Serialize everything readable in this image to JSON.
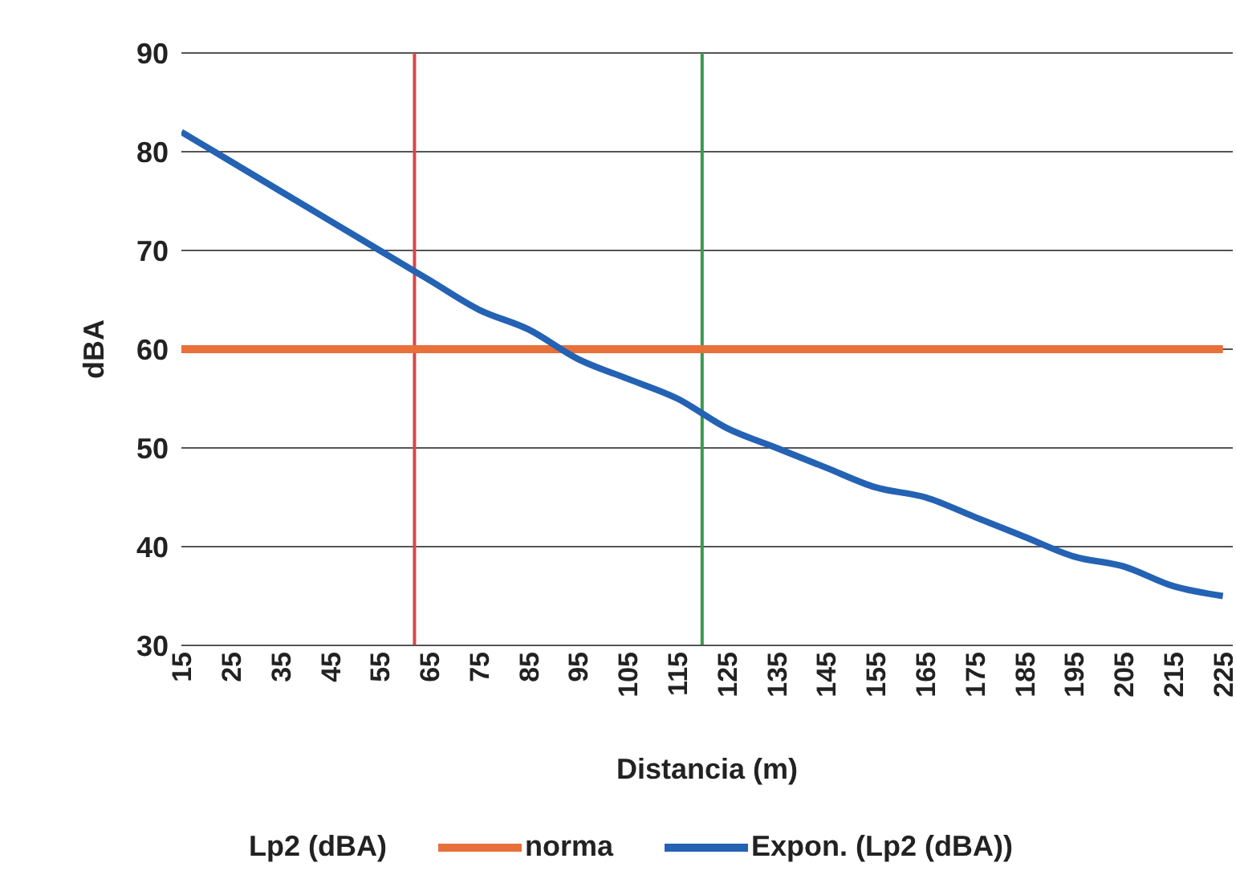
{
  "chart_data": {
    "type": "line",
    "xlabel": "Distancia (m)",
    "ylabel": "dBA",
    "x": [
      15,
      25,
      35,
      45,
      55,
      65,
      75,
      85,
      95,
      105,
      115,
      125,
      135,
      145,
      155,
      165,
      175,
      185,
      195,
      205,
      215,
      225
    ],
    "series": [
      {
        "name": "Lp2 (dBA)",
        "values": [
          null,
          null,
          null,
          null,
          null,
          null,
          null,
          null,
          null,
          null,
          null,
          null,
          null,
          null,
          null,
          null,
          null,
          null,
          null,
          null,
          null,
          null
        ]
      },
      {
        "name": "norma",
        "color": "#e8703a",
        "values": [
          60,
          60,
          60,
          60,
          60,
          60,
          60,
          60,
          60,
          60,
          60,
          60,
          60,
          60,
          60,
          60,
          60,
          60,
          60,
          60,
          60,
          60
        ]
      },
      {
        "name": "Expon. (Lp2 (dBA))",
        "color": "#2462b4",
        "values": [
          82,
          79,
          76,
          73,
          70,
          67,
          64,
          62,
          59,
          57,
          55,
          52,
          50,
          48,
          46,
          45,
          43,
          41,
          39,
          38,
          36,
          35
        ]
      }
    ],
    "xlim": [
      15,
      227
    ],
    "xticks": [
      15,
      25,
      35,
      45,
      55,
      65,
      75,
      85,
      95,
      105,
      115,
      125,
      135,
      145,
      155,
      165,
      175,
      185,
      195,
      205,
      215,
      225
    ],
    "ylim": [
      30,
      90
    ],
    "yticks": [
      30,
      40,
      50,
      60,
      70,
      80,
      90
    ],
    "ref_lines": [
      {
        "axis": "x",
        "value": 62,
        "color": "#d9464a"
      },
      {
        "axis": "x",
        "value": 120,
        "color": "#3a9a4e"
      }
    ],
    "grid": "y",
    "legend": "bottom",
    "marker": "none",
    "line_style": "solid"
  }
}
